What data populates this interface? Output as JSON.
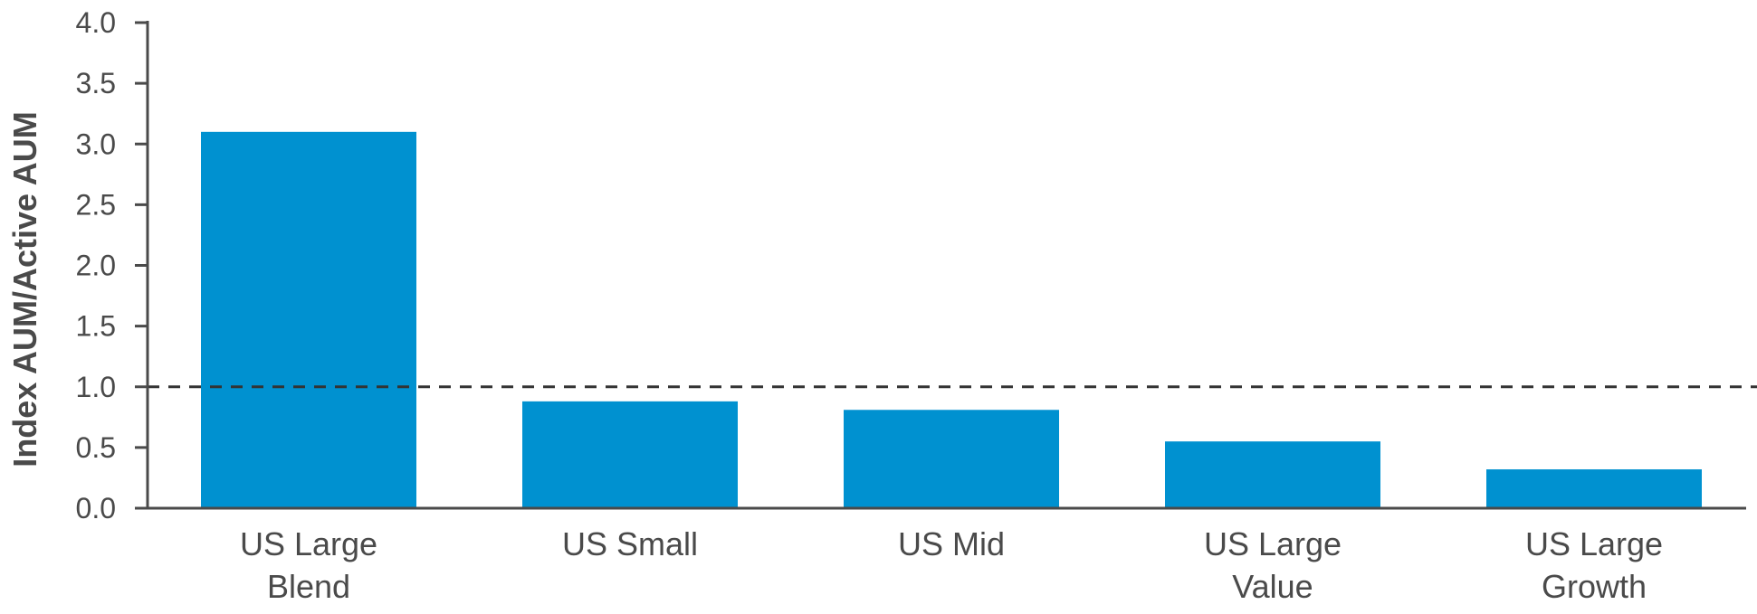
{
  "chart_data": {
    "type": "bar",
    "ylabel": "Index AUM/Active AUM",
    "xlabel": "",
    "ylim": [
      0,
      4
    ],
    "yticks": [
      0.0,
      0.5,
      1.0,
      1.5,
      2.0,
      2.5,
      3.0,
      3.5,
      4.0
    ],
    "ytick_labels": [
      "0.0",
      "0.5",
      "1.0",
      "1.5",
      "2.0",
      "2.5",
      "3.0",
      "3.5",
      "4.0"
    ],
    "categories": [
      [
        "US Large",
        "Blend"
      ],
      [
        "US Small"
      ],
      [
        "US Mid"
      ],
      [
        "US Large",
        "Value"
      ],
      [
        "US Large",
        "Growth"
      ]
    ],
    "values": [
      3.1,
      0.88,
      0.81,
      0.55,
      0.32
    ],
    "reference_line": {
      "y": 1.0,
      "style": "dashed",
      "color": "#333333"
    },
    "bar_color": "#0091d0",
    "axis_color": "#4a4a4a",
    "grid": false
  }
}
